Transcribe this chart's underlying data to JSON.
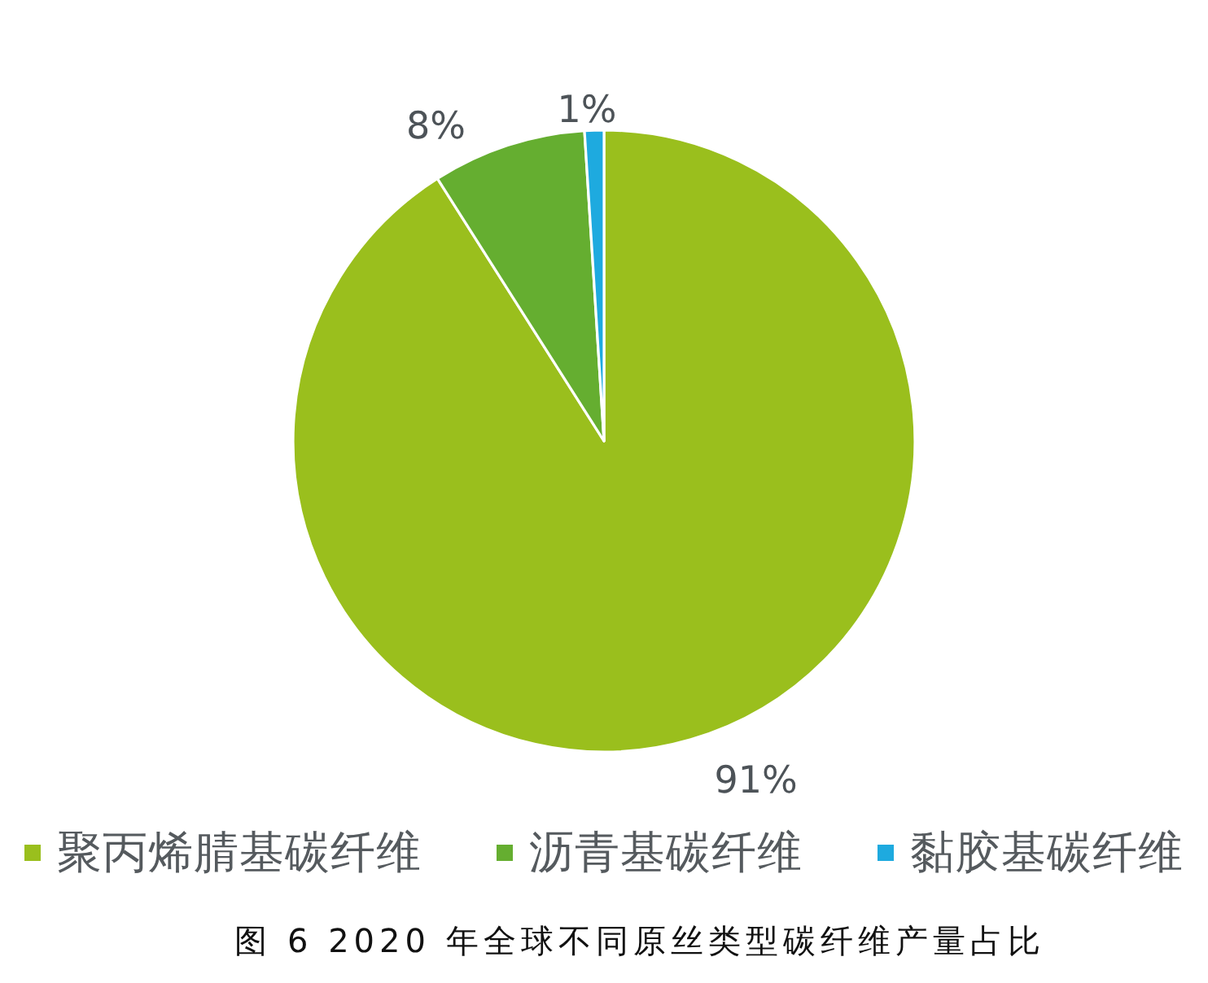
{
  "chart_data": {
    "type": "pie",
    "categories": [
      "聚丙烯腈基碳纤维",
      "沥青基碳纤维",
      "黏胶基碳纤维"
    ],
    "values": [
      91,
      8,
      1
    ],
    "colors": [
      "#9abf1d",
      "#65ae30",
      "#1eaadf"
    ],
    "value_labels": [
      "91%",
      "8%",
      "1%"
    ],
    "legend": "bottom",
    "annotations": [
      "图 6  2020 年全球不同原丝类型碳纤维产量占比"
    ]
  }
}
